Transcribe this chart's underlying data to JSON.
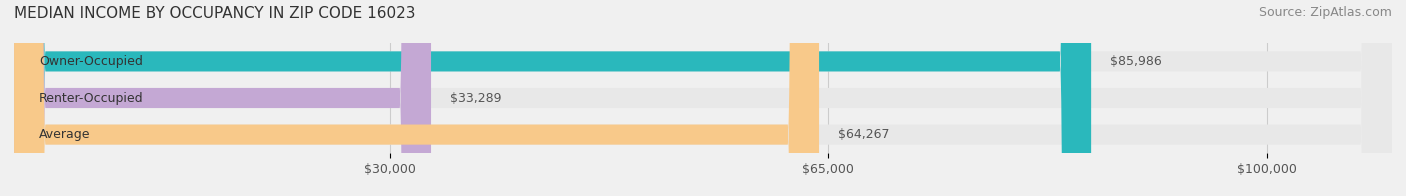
{
  "title": "MEDIAN INCOME BY OCCUPANCY IN ZIP CODE 16023",
  "source": "Source: ZipAtlas.com",
  "categories": [
    "Owner-Occupied",
    "Renter-Occupied",
    "Average"
  ],
  "values": [
    85986,
    33289,
    64267
  ],
  "labels": [
    "$85,986",
    "$33,289",
    "$64,267"
  ],
  "bar_colors": [
    "#2ab8bc",
    "#c4a8d4",
    "#f8c98a"
  ],
  "background_color": "#f0f0f0",
  "bar_bg_color": "#e8e8e8",
  "xlim": [
    0,
    110000
  ],
  "xticks": [
    30000,
    65000,
    100000
  ],
  "xticklabels": [
    "$30,000",
    "$65,000",
    "$100,000"
  ],
  "title_fontsize": 11,
  "source_fontsize": 9,
  "label_fontsize": 9,
  "bar_height": 0.55,
  "bar_label_color": "#555555"
}
